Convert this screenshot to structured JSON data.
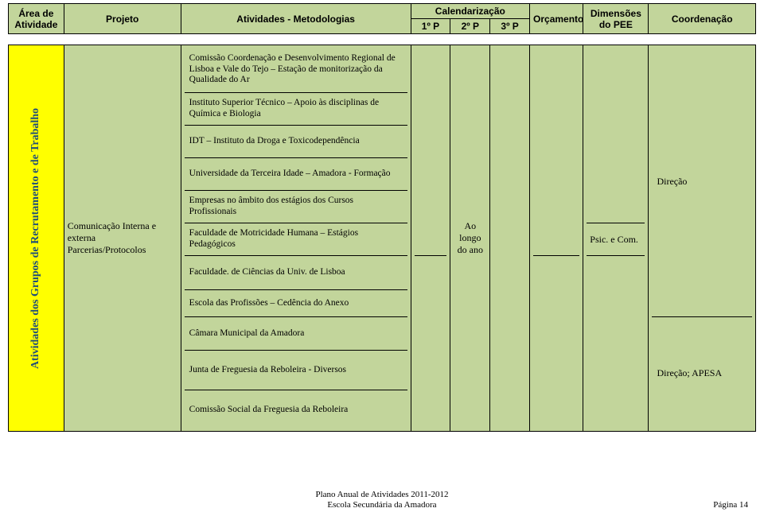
{
  "header": {
    "area": "Área de Atividade",
    "projeto": "Projeto",
    "atividades": "Atividades - Metodologias",
    "calendarizacao": "Calendarização",
    "cal_cols": [
      "1º P",
      "2º P",
      "3º P"
    ],
    "orcamento": "Orçamento",
    "dimensoes": "Dimensões do PEE",
    "coordenacao": "Coordenação"
  },
  "sidebar_rot": "Atividades dos Grupos de Recrutamento e de Trabalho",
  "projeto_text": "Comunicação Interna e externa\nParcerias/Protocolos",
  "activities": [
    "Comissão Coordenação e Desenvolvimento Regional de Lisboa e Vale do Tejo – Estação de monitorização da Qualidade do Ar",
    "Instituto Superior Técnico – Apoio às disciplinas de Química e Biologia",
    "IDT – Instituto da Droga e Toxicodependência",
    "Universidade da Terceira Idade – Amadora - Formação",
    "Empresas no âmbito dos estágios dos Cursos Profissionais",
    "Faculdade de Motricidade Humana – Estágios Pedagógicos",
    "Faculdade. de Ciências da Univ. de Lisboa",
    "Escola das Profissões – Cedência do Anexo",
    "Câmara Municipal da Amadora",
    "Junta de Freguesia da Reboleira - Diversos",
    "Comissão Social da Freguesia da Reboleira"
  ],
  "activities_heights": [
    58,
    41,
    41,
    41,
    41,
    41,
    43,
    34,
    42,
    50,
    49
  ],
  "cal1_segments": [
    263,
    218
  ],
  "orc_block_heights": [
    263,
    218
  ],
  "calendar_text": "Ao longo do ano",
  "dim_text": "Psic. e Com.",
  "dim_block_heights": [
    222,
    41,
    218
  ],
  "coord_labels": [
    "Direção",
    "Direção; APESA"
  ],
  "coord_block_heights": [
    340,
    141
  ],
  "footer": {
    "line1": "Plano Anual de Atividades 2011-2012",
    "line2": "Escola Secundária da Amadora",
    "page": "Página 14"
  },
  "colors": {
    "header_bg": "#c2d59b",
    "sidebar_bg": "#ffff00",
    "rot_text": "#1f4e79",
    "border": "#000000"
  }
}
